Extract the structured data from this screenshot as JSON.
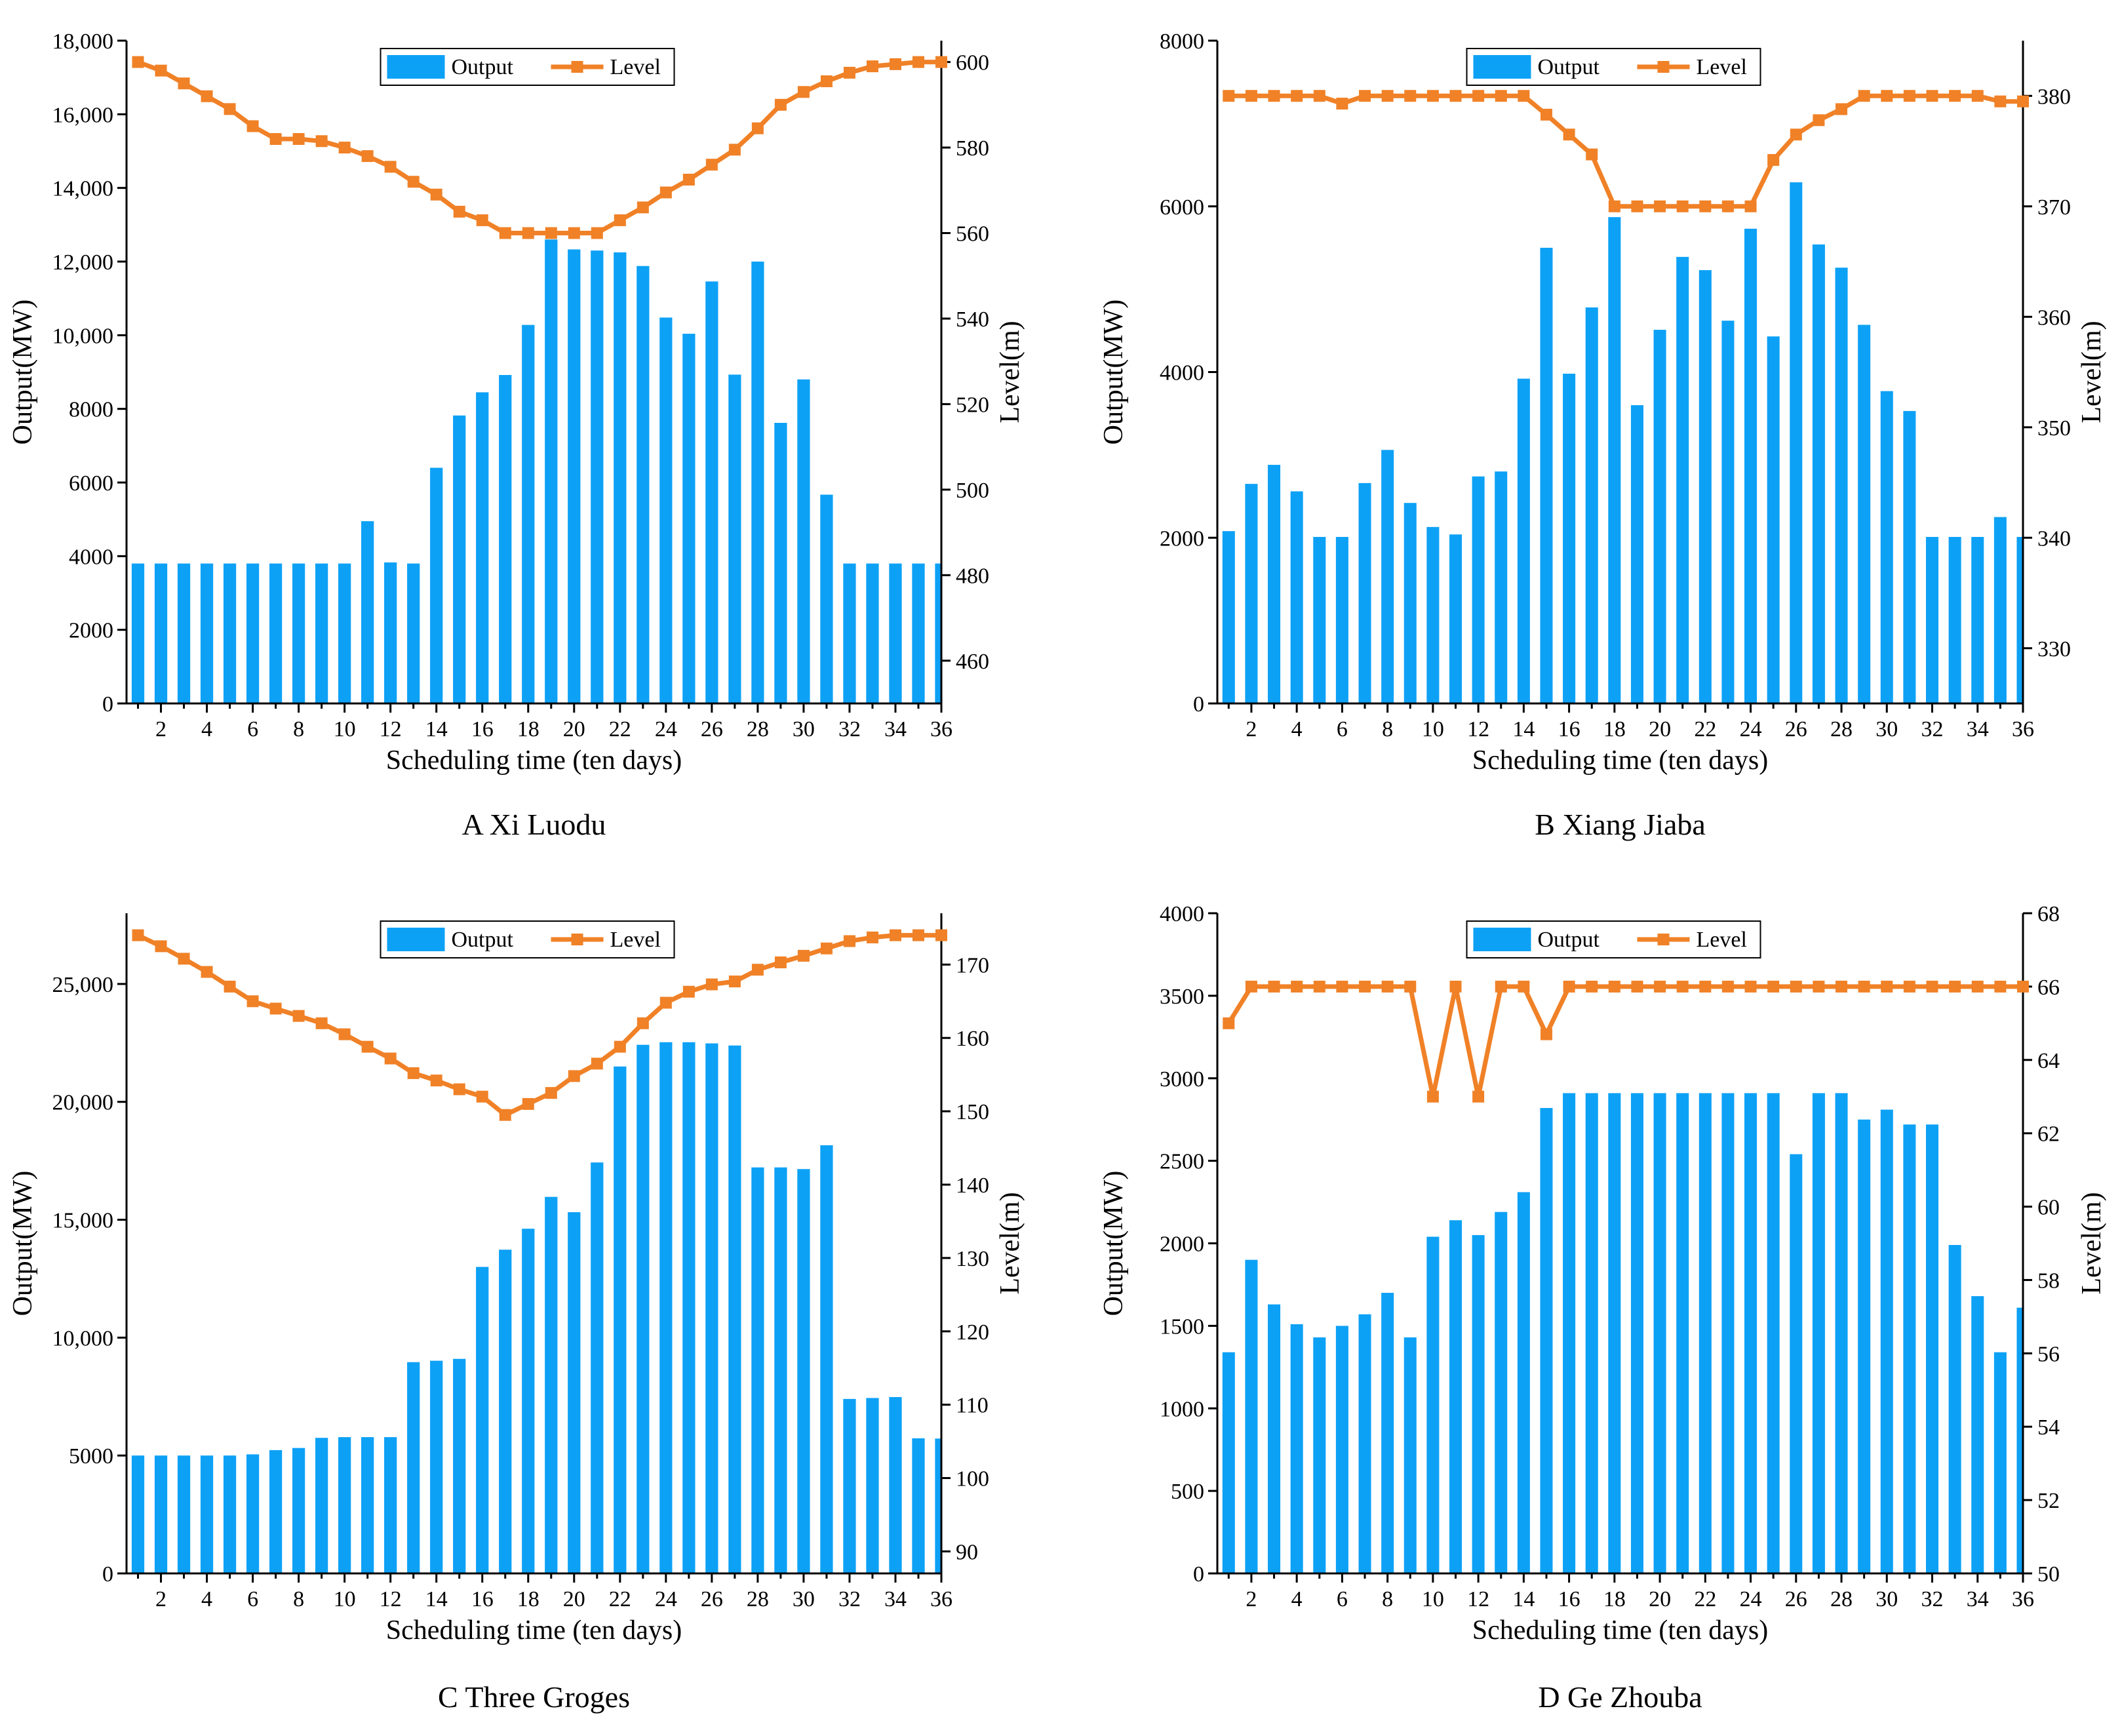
{
  "colors": {
    "bar": "#0da1f6",
    "line": "#f08127",
    "axis": "#000000"
  },
  "chart_data": [
    {
      "panel": "A",
      "type": "bar+line",
      "caption": "A Xi Luodu",
      "xlabel": "Scheduling time (ten days)",
      "ylabel_left": "Output(MW)",
      "ylabel_right": "Level(m)",
      "legend": [
        "Output",
        "Level"
      ],
      "xlim": [
        0.5,
        36
      ],
      "x_ticks": [
        2,
        4,
        6,
        8,
        10,
        12,
        14,
        16,
        18,
        20,
        22,
        24,
        26,
        28,
        30,
        32,
        34,
        36
      ],
      "ylim_left": [
        0,
        18000
      ],
      "y_ticks_left": [
        0,
        2000,
        4000,
        6000,
        8000,
        10000,
        12000,
        14000,
        16000,
        18000
      ],
      "y_tick_labels_left": [
        "0",
        "2000",
        "4000",
        "6000",
        "8000",
        "10,000",
        "12,000",
        "14,000",
        "16,000",
        "18,000"
      ],
      "ylim_right": [
        450,
        605
      ],
      "y_ticks_right": [
        460,
        480,
        500,
        520,
        540,
        560,
        580,
        600
      ],
      "y_tick_labels_right": [
        "460",
        "480",
        "500",
        "520",
        "540",
        "560",
        "580",
        "600"
      ],
      "x": [
        1,
        2,
        3,
        4,
        5,
        6,
        7,
        8,
        9,
        10,
        11,
        12,
        13,
        14,
        15,
        16,
        17,
        18,
        19,
        20,
        21,
        22,
        23,
        24,
        25,
        26,
        27,
        28,
        29,
        30,
        31,
        32,
        33,
        34,
        35,
        36
      ],
      "output": [
        3800,
        3800,
        3800,
        3800,
        3800,
        3800,
        3800,
        3800,
        3800,
        3800,
        4950,
        3830,
        3800,
        6400,
        7820,
        8450,
        8920,
        10280,
        12600,
        12330,
        12300,
        12250,
        11880,
        10480,
        10040,
        11460,
        8930,
        12000,
        7620,
        8800,
        5670,
        3800,
        3800,
        3800,
        3800,
        3800
      ],
      "level": [
        600,
        598,
        595,
        592,
        589,
        585,
        582,
        582,
        581.5,
        580,
        578,
        575.5,
        572,
        569,
        565,
        563,
        560,
        560,
        560,
        560,
        560,
        563,
        566,
        569.5,
        572.5,
        576,
        579.5,
        584.5,
        590,
        593,
        595.5,
        597.5,
        599,
        599.5,
        600,
        600
      ]
    },
    {
      "panel": "B",
      "type": "bar+line",
      "caption": "B Xiang Jiaba",
      "xlabel": "Scheduling time (ten days)",
      "ylabel_left": "Output(MW)",
      "ylabel_right": "Level(m)",
      "legend": [
        "Output",
        "Level"
      ],
      "xlim": [
        0.5,
        36
      ],
      "x_ticks": [
        2,
        4,
        6,
        8,
        10,
        12,
        14,
        16,
        18,
        20,
        22,
        24,
        26,
        28,
        30,
        32,
        34,
        36
      ],
      "ylim_left": [
        0,
        8000
      ],
      "y_ticks_left": [
        0,
        2000,
        4000,
        6000,
        8000
      ],
      "y_tick_labels_left": [
        "0",
        "2000",
        "4000",
        "6000",
        "8000"
      ],
      "ylim_right": [
        325,
        385
      ],
      "y_ticks_right": [
        330,
        340,
        350,
        360,
        370,
        380
      ],
      "y_tick_labels_right": [
        "330",
        "340",
        "350",
        "360",
        "370",
        "380"
      ],
      "x": [
        1,
        2,
        3,
        4,
        5,
        6,
        7,
        8,
        9,
        10,
        11,
        12,
        13,
        14,
        15,
        16,
        17,
        18,
        19,
        20,
        21,
        22,
        23,
        24,
        25,
        26,
        27,
        28,
        29,
        30,
        31,
        32,
        33,
        34,
        35,
        36
      ],
      "output": [
        2080,
        2650,
        2880,
        2560,
        2010,
        2010,
        2660,
        3060,
        2420,
        2130,
        2040,
        2740,
        2800,
        3920,
        5500,
        3980,
        4780,
        5870,
        3600,
        4510,
        5390,
        5230,
        4620,
        5730,
        4430,
        6290,
        5540,
        5260,
        4570,
        3770,
        3530,
        2010,
        2010,
        2010,
        2250,
        2010
      ],
      "level": [
        380,
        380,
        380,
        380,
        380,
        379.3,
        380,
        380,
        380,
        380,
        380,
        380,
        380,
        380,
        378.3,
        376.5,
        374.7,
        370,
        370,
        370,
        370,
        370,
        370,
        370,
        374.2,
        376.5,
        377.8,
        378.8,
        380,
        380,
        380,
        380,
        380,
        380,
        379.5,
        379.5
      ]
    },
    {
      "panel": "C",
      "type": "bar+line",
      "caption": "C Three Groges",
      "xlabel": "Scheduling time (ten days)",
      "ylabel_left": "Output(MW)",
      "ylabel_right": "Level(m)",
      "legend": [
        "Output",
        "Level"
      ],
      "xlim": [
        0.5,
        36
      ],
      "x_ticks": [
        2,
        4,
        6,
        8,
        10,
        12,
        14,
        16,
        18,
        20,
        22,
        24,
        26,
        28,
        30,
        32,
        34,
        36
      ],
      "ylim_left": [
        0,
        28000
      ],
      "y_ticks_left": [
        0,
        5000,
        10000,
        15000,
        20000,
        25000
      ],
      "y_tick_labels_left": [
        "0",
        "5000",
        "10,000",
        "15,000",
        "20,000",
        "25,000"
      ],
      "ylim_right": [
        87,
        177
      ],
      "y_ticks_right": [
        90,
        100,
        110,
        120,
        130,
        140,
        150,
        160,
        170
      ],
      "y_tick_labels_right": [
        "90",
        "100",
        "110",
        "120",
        "130",
        "140",
        "150",
        "160",
        "170"
      ],
      "x": [
        1,
        2,
        3,
        4,
        5,
        6,
        7,
        8,
        9,
        10,
        11,
        12,
        13,
        14,
        15,
        16,
        17,
        18,
        19,
        20,
        21,
        22,
        23,
        24,
        25,
        26,
        27,
        28,
        29,
        30,
        31,
        32,
        33,
        34,
        35,
        36
      ],
      "output": [
        5000,
        5000,
        5000,
        5000,
        5000,
        5050,
        5230,
        5320,
        5750,
        5780,
        5780,
        5780,
        8960,
        9020,
        9100,
        13000,
        13730,
        14620,
        15970,
        15320,
        17430,
        21500,
        22420,
        22530,
        22530,
        22480,
        22390,
        17220,
        17220,
        17150,
        18160,
        7400,
        7440,
        7480,
        5730,
        5720
      ],
      "level": [
        174,
        172.5,
        170.8,
        169,
        167,
        165,
        164,
        163,
        162,
        160.5,
        158.8,
        157.2,
        155.2,
        154.2,
        153,
        152,
        149.5,
        151,
        152.5,
        154.8,
        156.5,
        158.8,
        162,
        164.8,
        166.3,
        167.3,
        167.7,
        169.3,
        170.3,
        171.2,
        172.2,
        173.2,
        173.7,
        174,
        174,
        174
      ]
    },
    {
      "panel": "D",
      "type": "bar+line",
      "caption": "D Ge Zhouba",
      "xlabel": "Scheduling time (ten days)",
      "ylabel_left": "Output(MW)",
      "ylabel_right": "Level(m)",
      "legend": [
        "Output",
        "Level"
      ],
      "xlim": [
        0.5,
        36
      ],
      "x_ticks": [
        2,
        4,
        6,
        8,
        10,
        12,
        14,
        16,
        18,
        20,
        22,
        24,
        26,
        28,
        30,
        32,
        34,
        36
      ],
      "ylim_left": [
        0,
        4000
      ],
      "y_ticks_left": [
        0,
        500,
        1000,
        1500,
        2000,
        2500,
        3000,
        3500,
        4000
      ],
      "y_tick_labels_left": [
        "0",
        "500",
        "1000",
        "1500",
        "2000",
        "2500",
        "3000",
        "3500",
        "4000"
      ],
      "ylim_right": [
        50,
        68
      ],
      "y_ticks_right": [
        50,
        52,
        54,
        56,
        58,
        60,
        62,
        64,
        66,
        68
      ],
      "y_tick_labels_right": [
        "50",
        "52",
        "54",
        "56",
        "58",
        "60",
        "62",
        "64",
        "66",
        "68"
      ],
      "x": [
        1,
        2,
        3,
        4,
        5,
        6,
        7,
        8,
        9,
        10,
        11,
        12,
        13,
        14,
        15,
        16,
        17,
        18,
        19,
        20,
        21,
        22,
        23,
        24,
        25,
        26,
        27,
        28,
        29,
        30,
        31,
        32,
        33,
        34,
        35,
        36
      ],
      "output": [
        1340,
        1900,
        1630,
        1510,
        1430,
        1500,
        1570,
        1700,
        1430,
        2040,
        2140,
        2050,
        2190,
        2310,
        2820,
        2910,
        2910,
        2910,
        2910,
        2910,
        2910,
        2910,
        2910,
        2910,
        2910,
        2540,
        2910,
        2910,
        2750,
        2810,
        2720,
        2720,
        1990,
        1680,
        1340,
        1610
      ],
      "level": [
        65,
        66,
        66,
        66,
        66,
        66,
        66,
        66,
        66,
        63,
        66,
        63,
        66,
        66,
        64.7,
        66,
        66,
        66,
        66,
        66,
        66,
        66,
        66,
        66,
        66,
        66,
        66,
        66,
        66,
        66,
        66,
        66,
        66,
        66,
        66,
        66
      ]
    }
  ]
}
